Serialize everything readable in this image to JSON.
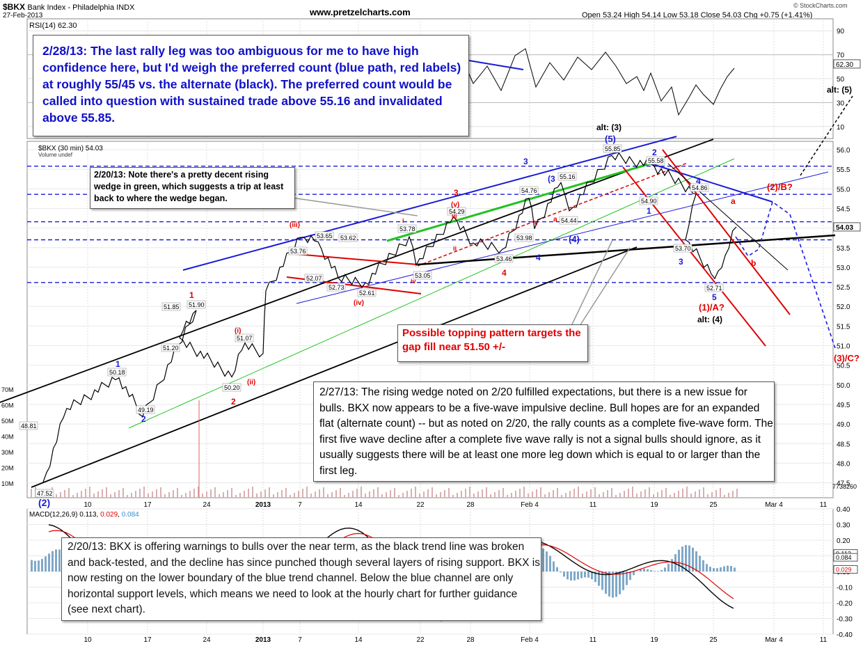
{
  "header": {
    "symbol": "$BKX",
    "name": "Bank Index - Philadelphia  INDX",
    "date": "27-Feb-2013",
    "site": "www.pretzelcharts.com",
    "ohlc": "Open 53.24  High 54.14  Low 53.18  Close 54.03  Chg +0.75 (+1.41%)",
    "credit": "© StockCharts.com"
  },
  "rsi": {
    "label": "RSI(14) 62.30",
    "ticks": [
      "90",
      "70",
      "50",
      "30",
      "10"
    ],
    "last_tag": "62.30",
    "note": "2/28/13:  The last rally leg was too ambiguous for me to have high confidence here, but I'd weigh the preferred count (blue path, red labels) at roughly 55/45 vs. the alternate (black).  The preferred count would be called into question with sustained trade above 55.16 and invalidated above 55.85."
  },
  "price": {
    "label": "$BKX (30 min) 54.03",
    "sub": "Volume undef",
    "ticks": [
      "56.0",
      "55.5",
      "55.0",
      "54.5",
      "54.0",
      "53.5",
      "53.0",
      "52.5",
      "52.0",
      "51.5",
      "51.0",
      "50.5",
      "50.0",
      "49.5",
      "49.0",
      "48.5",
      "48.0",
      "47.5"
    ],
    "last_tag": "54.03",
    "volume_ticks": [
      "70M",
      "60M",
      "50M",
      "40M",
      "30M",
      "20M",
      "10M"
    ],
    "volume_last": "7738260"
  },
  "x_axis": [
    "10",
    "17",
    "24",
    "2013",
    "7",
    "14",
    "22",
    "28",
    "Feb 4",
    "11",
    "19",
    "25",
    "Mar 4",
    "11"
  ],
  "chart_data": {
    "type": "line",
    "title": "$BKX Bank Index - Philadelphia INDX (30 min)",
    "x": [
      "Dec 6",
      "Dec 10",
      "Dec 14",
      "Dec 17",
      "Dec 21",
      "Dec 24",
      "Dec 27",
      "Dec 28",
      "Dec 31",
      "Jan 2",
      "Jan 7",
      "Jan 9",
      "Jan 11",
      "Jan 14",
      "Jan 18",
      "Jan 22",
      "Jan 24",
      "Jan 28",
      "Jan 31",
      "Feb 4",
      "Feb 6",
      "Feb 8",
      "Feb 11",
      "Feb 14",
      "Feb 19",
      "Feb 21",
      "Feb 22",
      "Feb 25",
      "Feb 26",
      "Feb 27"
    ],
    "series": [
      {
        "values": [
          47.52,
          49.4,
          50.18,
          49.19,
          51.9,
          51.2,
          50.2,
          51.07,
          50.8,
          52.4,
          53.76,
          53.65,
          52.73,
          52.61,
          53.78,
          53.05,
          54.29,
          53.62,
          53.46,
          54.76,
          53.98,
          55.16,
          54.44,
          55.85,
          55.58,
          54.86,
          53.7,
          52.71,
          53.3,
          54.03
        ]
      }
    ],
    "ylim": [
      47.3,
      56.4
    ],
    "annotations": {
      "price_labels": [
        "48.81",
        "47.52",
        "50.18",
        "49.19",
        "51.85",
        "51.20",
        "51.90",
        "51.07",
        "50.20",
        "53.76",
        "53.65",
        "53.62",
        "52.07",
        "52.73",
        "52.61",
        "53.78",
        "53.05",
        "54.29",
        "53.46",
        "53.98",
        "54.76",
        "55.16",
        "54.44",
        "55.85",
        "55.58",
        "54.90",
        "54.86",
        "53.70",
        "52.71"
      ],
      "waves_blue": [
        "(2)",
        "1",
        "2",
        "3",
        "(3",
        "4",
        "(4)",
        "(5)",
        "1",
        "2",
        "3",
        "4",
        "5"
      ],
      "waves_red": [
        "1",
        "2",
        "(i)",
        "(ii)",
        "(iii)",
        "(iv)",
        "(v)",
        "3",
        "iii",
        "i",
        "ii",
        "iv",
        "v",
        "4",
        "a",
        "b",
        "(2)/B?",
        "(3)/C?",
        "(1)/A?",
        "a"
      ],
      "waves_black": [
        "alt: (3)",
        "alt: (4)",
        "alt: (5)"
      ]
    },
    "texts": {
      "wedge_note": "2/20/13: Note there's a pretty decent rising wedge in green, which suggests a trip at least back to where the wedge began.",
      "topping_note": "Possible topping pattern targets the gap fill near 51.50 +/-",
      "main_note": "2/27/13:  The rising wedge noted on 2/20 fulfilled expectations, but there is a new issue for bulls.  BKX now appears to be a five-wave impulsive decline.  Bull hopes are for an expanded flat (alternate count) -- but as noted on 2/20, the rally counts as a complete five-wave form.  The first five wave decline after a complete five wave rally is not a signal bulls should ignore, as it usually suggests there will be at least one more leg down which is equal to or larger than the first leg."
    }
  },
  "macd": {
    "label": "MACD(12,26,9)",
    "v1": "0.113",
    "v2": "0.029",
    "v3": "0.084",
    "ticks": [
      "0.40",
      "0.30",
      "0.20",
      "0.10",
      "0.00",
      "-0.10",
      "-0.20",
      "-0.30",
      "-0.40"
    ],
    "tag_a": "0.113",
    "tag_b": "0.084",
    "tag_c": "0.029",
    "note": "2/20/13:  BKX is offering warnings to bulls over the near term, as the black trend line was broken and back-tested, and the decline has since punched though several layers of rising support. BKX is now resting on the lower boundary of the blue trend channel.  Below the blue channel are only horizontal support levels, which means we need to look at the hourly chart for further guidance (see next chart)."
  },
  "colors": {
    "blue": "#1a1ad6",
    "red": "#e00000",
    "green": "#22c322",
    "rsi_green": "#5a8a5a",
    "rsi_red": "#a05050",
    "macd_hist": "#7fa8c8"
  }
}
